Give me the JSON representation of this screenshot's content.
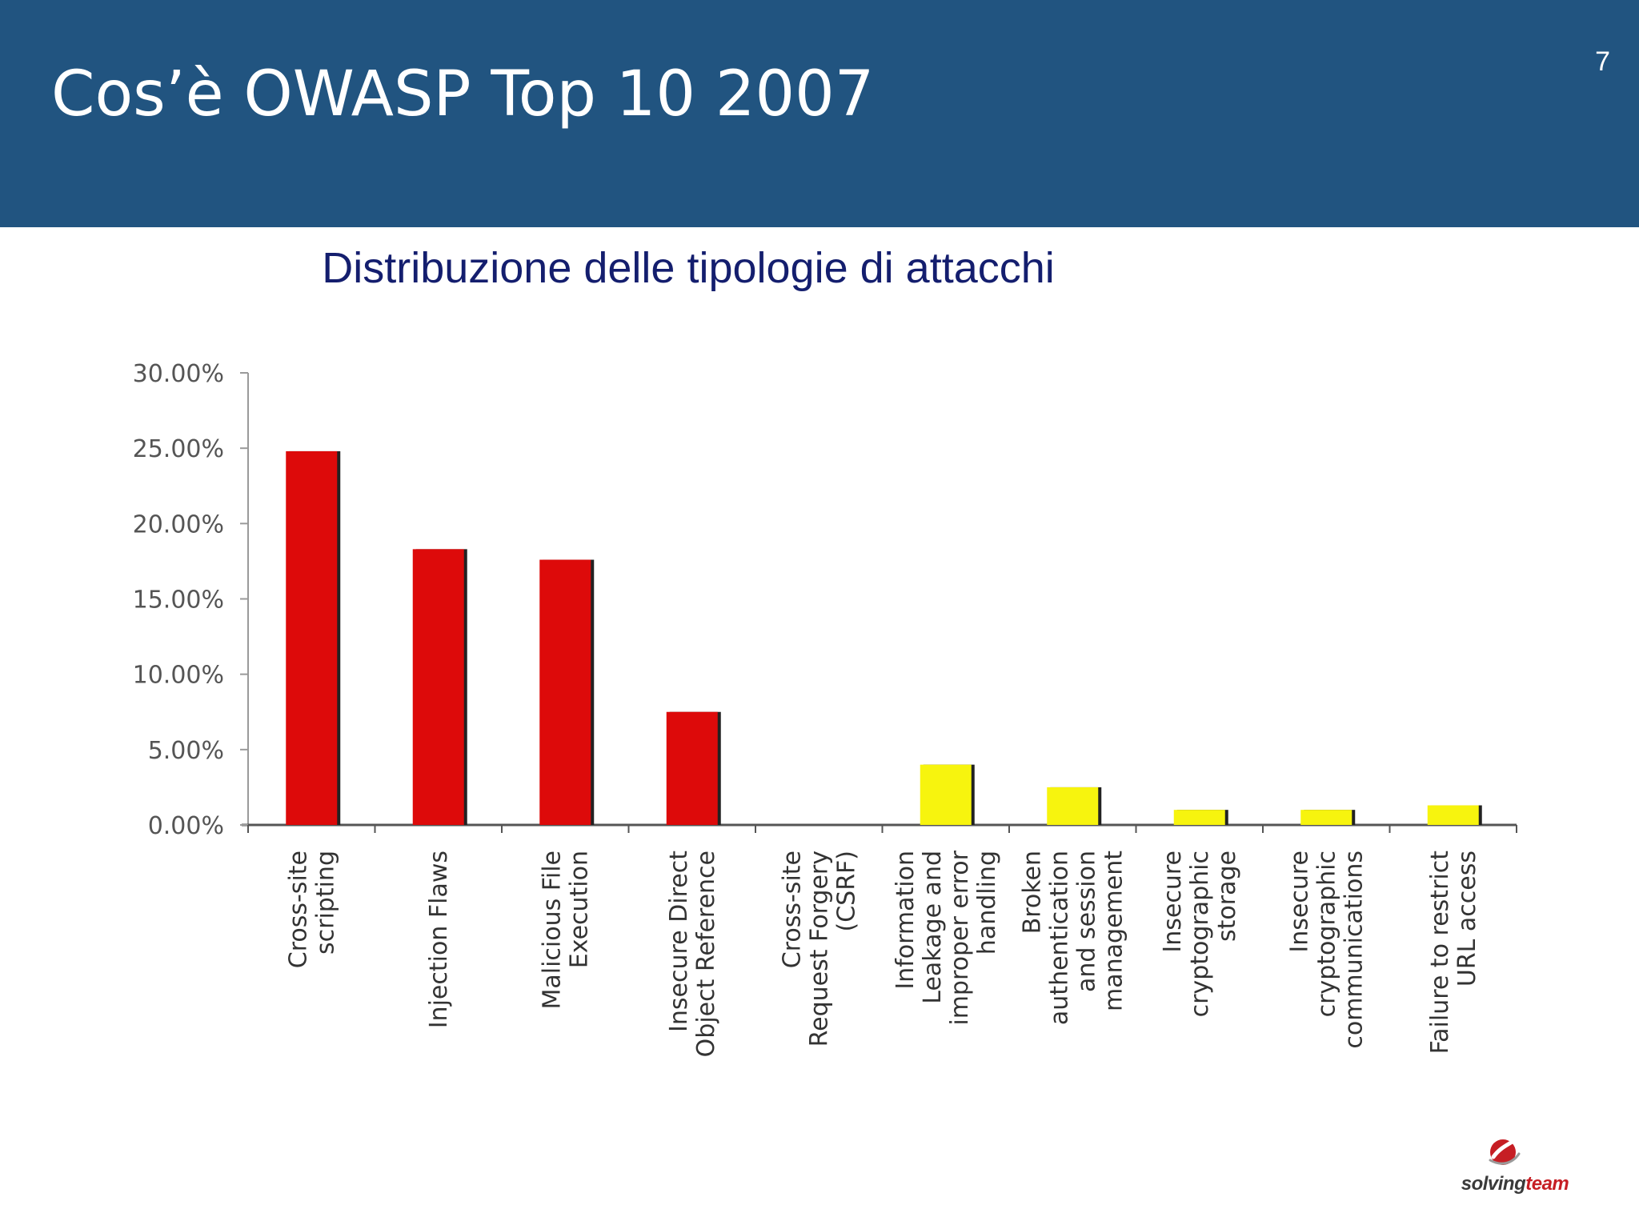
{
  "slide": {
    "title": "Cos’è OWASP Top 10 2007",
    "page_number": "7",
    "subtitle": "Distribuzione delle tipologie di attacchi"
  },
  "logo": {
    "text_main": "solving",
    "text_accent": "team",
    "colors": {
      "main": "#3a3a3a",
      "accent": "#c61e24"
    }
  },
  "colors": {
    "header": "#215480",
    "subtitle": "#141e6e",
    "bar_red": "#dd0a0a",
    "bar_yellow": "#f7f40e"
  },
  "chart_data": {
    "type": "bar",
    "title": "",
    "xlabel": "",
    "ylabel": "",
    "ylim": [
      0,
      30
    ],
    "yticks": [
      "0.00%",
      "5.00%",
      "10.00%",
      "15.00%",
      "20.00%",
      "25.00%",
      "30.00%"
    ],
    "grid": false,
    "legend": "none",
    "categories": [
      "Cross-site scripting",
      "Injection Flaws",
      "Malicious File Execution",
      "Insecure Direct Object Reference",
      "Cross-site Request Forgery (CSRF)",
      "Information Leakage and improper error handling",
      "Broken authentication and session management",
      "Insecure cryptographic storage",
      "Insecure cryptographic communications",
      "Failure to restrict URL access"
    ],
    "category_label_lines": [
      [
        "Cross-site",
        "scripting"
      ],
      [
        "Injection Flaws"
      ],
      [
        "Malicious File",
        "Execution"
      ],
      [
        "Insecure Direct",
        "Object Reference"
      ],
      [
        "Cross-site",
        "Request Forgery",
        "(CSRF)"
      ],
      [
        "Information",
        "Leakage and",
        "improper error",
        "handling"
      ],
      [
        "Broken",
        "authentication",
        "and session",
        "management"
      ],
      [
        "Insecure",
        "cryptographic",
        "storage"
      ],
      [
        "Insecure",
        "cryptographic",
        "communications"
      ],
      [
        "Failure to restrict",
        "URL access"
      ]
    ],
    "values": [
      24.8,
      18.3,
      17.6,
      7.5,
      0,
      4.0,
      2.5,
      1.0,
      1.0,
      1.3
    ],
    "bar_colors": [
      "red",
      "red",
      "red",
      "red",
      "red",
      "yellow",
      "yellow",
      "yellow",
      "yellow",
      "yellow"
    ]
  }
}
